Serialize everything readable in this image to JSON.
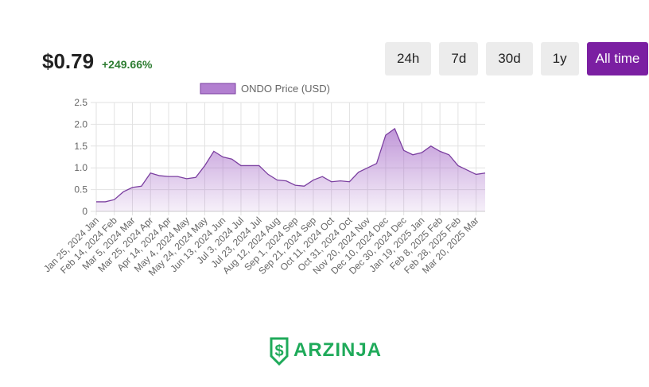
{
  "header": {
    "price": "$0.79",
    "change": "+249.66%"
  },
  "buttons": [
    "24h",
    "7d",
    "30d",
    "1y",
    "All time"
  ],
  "logo": "ARZINJA",
  "chart_data": {
    "type": "area",
    "categories": [
      "Jan 25, 2024 Jan",
      null,
      "Feb 14, 2024 Feb",
      null,
      "Mar 5, 2024 Mar",
      null,
      "Mar 25, 2024 Apr",
      null,
      "Apr 14, 2024 Apr",
      null,
      "May 4, 2024 May",
      null,
      "May 24, 2024 May",
      null,
      "Jun 13, 2024 Jun",
      null,
      "Jul 3, 2024 Jul",
      null,
      "Jul 23, 2024 Jul",
      null,
      "Aug 12, 2024 Aug",
      null,
      "Sep 1, 2024 Sep",
      null,
      "Sep 21, 2024 Sep",
      null,
      "Oct 11, 2024 Oct",
      null,
      "Oct 31, 2024 Oct",
      null,
      "Nov 20, 2024 Nov",
      null,
      "Dec 10, 2024 Dec",
      null,
      "Dec 30, 2024 Dec",
      null,
      "Jan 19, 2025 Jan",
      null,
      "Feb 8, 2025 Feb",
      null,
      "Feb 28, 2025 Feb",
      null,
      "Mar 20, 2025 Mar",
      null
    ],
    "series": [
      {
        "name": "ONDO Price (USD)",
        "color": "#7b3fa0",
        "values": [
          0.22,
          0.22,
          0.27,
          0.45,
          0.55,
          0.58,
          0.88,
          0.82,
          0.8,
          0.8,
          0.75,
          0.78,
          1.05,
          1.38,
          1.25,
          1.2,
          1.05,
          1.05,
          1.05,
          0.85,
          0.72,
          0.7,
          0.6,
          0.58,
          0.72,
          0.8,
          0.68,
          0.7,
          0.68,
          0.9,
          1.0,
          1.1,
          1.75,
          1.9,
          1.4,
          1.3,
          1.35,
          1.5,
          1.38,
          1.3,
          1.05,
          0.95,
          0.85,
          0.88
        ]
      }
    ],
    "ylim": [
      0,
      2.5
    ],
    "yticks": [
      0,
      {
        "value": 0.5,
        "label": "0.5"
      },
      {
        "value": 1,
        "label": "1.0"
      },
      {
        "value": 1.5,
        "label": "1.5"
      },
      {
        "value": 2,
        "label": "2.0"
      },
      {
        "value": 2.5,
        "label": "2.5"
      }
    ],
    "grid": true
  }
}
